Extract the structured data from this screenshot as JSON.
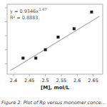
{
  "chart_data": {
    "type": "scatter",
    "title": "Figure 2. Plot of Rp versus monomer conce...",
    "x_label": "[M], mol/L",
    "series": [
      {
        "type": "scatter",
        "marker": "square",
        "color": "#1a1a1a",
        "x": [
          2.43,
          2.47,
          2.5,
          2.54,
          2.59,
          2.645
        ],
        "values": [
          0.28,
          0.28,
          0.4,
          0.58,
          0.7,
          0.94
        ]
      },
      {
        "type": "line",
        "color": "#aaaaaa",
        "x": [
          2.39,
          2.67
        ],
        "values": [
          0.1,
          0.88
        ]
      }
    ],
    "annotations": [
      "y = 0.9346x",
      "1.67",
      "R² = 0.8883"
    ],
    "xlim": [
      2.38,
      2.68
    ],
    "ylim": [
      0.05,
      1.05
    ],
    "xticks": [
      2.4,
      2.45,
      2.5,
      2.55,
      2.6,
      2.65
    ],
    "yticks": [
      0.2,
      0.4,
      0.6,
      0.8,
      1.0
    ],
    "tick_labels": "x",
    "grid": false
  }
}
